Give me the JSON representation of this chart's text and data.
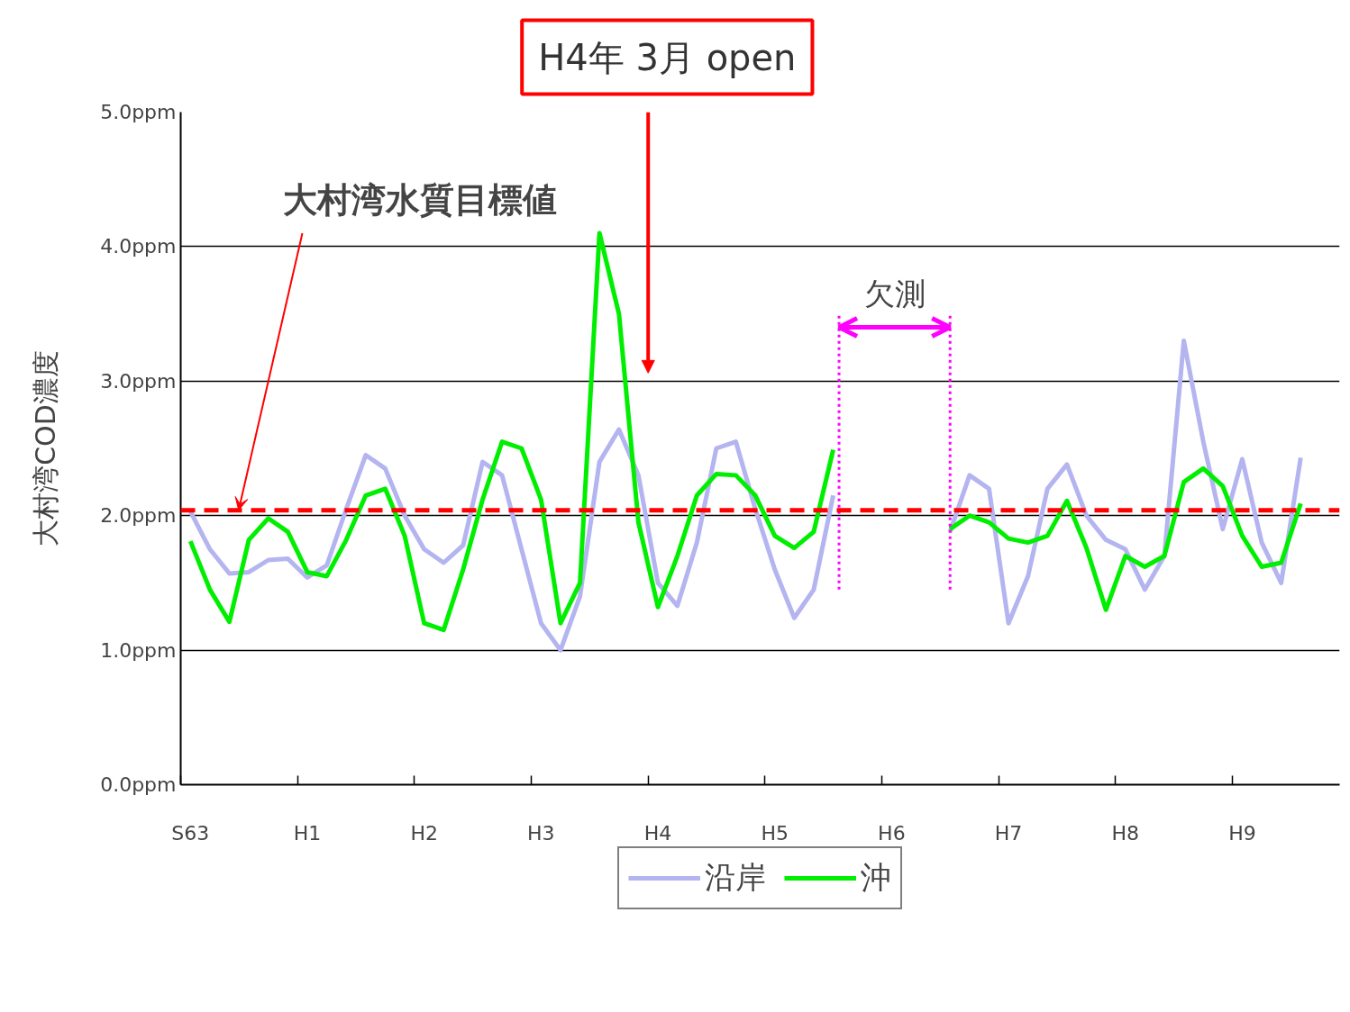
{
  "chart_data": {
    "type": "line",
    "ylabel": "大村湾COD濃度",
    "categories": [
      "S63",
      null,
      null,
      null,
      null,
      null,
      "H1",
      null,
      null,
      null,
      null,
      null,
      "H2",
      null,
      null,
      null,
      null,
      null,
      "H3",
      null,
      null,
      null,
      null,
      null,
      "H4",
      null,
      null,
      null,
      null,
      null,
      "H5",
      null,
      null,
      null,
      null,
      null,
      "H6",
      null,
      null,
      null,
      null,
      null,
      "H7",
      null,
      null,
      null,
      null,
      null,
      "H8",
      null,
      null,
      null,
      null,
      null,
      "H9",
      null,
      null,
      null
    ],
    "ylim": [
      0,
      5
    ],
    "yticks": [
      {
        "value": 0,
        "label": "0.0ppm"
      },
      {
        "value": 1,
        "label": "1.0ppm"
      },
      {
        "value": 2,
        "label": "2.0ppm"
      },
      {
        "value": 3,
        "label": "3.0ppm"
      },
      {
        "value": 4,
        "label": "4.0ppm"
      },
      {
        "value": 5,
        "label": "5.0ppm"
      }
    ],
    "grid": "y",
    "legend": "bottom",
    "line_style": "solid",
    "series": [
      {
        "name": "沿岸",
        "color": "#b4b4f0",
        "values": [
          2.03,
          1.75,
          1.57,
          1.58,
          1.67,
          1.68,
          1.54,
          1.63,
          2.05,
          2.45,
          2.35,
          2.0,
          1.75,
          1.65,
          1.78,
          2.4,
          2.3,
          1.75,
          1.2,
          1.0,
          1.4,
          2.4,
          2.64,
          2.3,
          1.5,
          1.33,
          1.8,
          2.5,
          2.55,
          2.05,
          1.6,
          1.24,
          1.45,
          2.15,
          null,
          null,
          null,
          null,
          null,
          1.88,
          2.3,
          2.2,
          1.2,
          1.55,
          2.2,
          2.38,
          2.0,
          1.82,
          1.75,
          1.45,
          1.7,
          3.3,
          2.55,
          1.9,
          2.42,
          1.8,
          1.5,
          2.43
        ]
      },
      {
        "name": "沖",
        "color": "#00ee00",
        "values": [
          1.81,
          1.45,
          1.21,
          1.82,
          1.98,
          1.88,
          1.58,
          1.55,
          1.82,
          2.15,
          2.2,
          1.85,
          1.2,
          1.15,
          1.6,
          2.12,
          2.55,
          2.5,
          2.12,
          1.2,
          1.5,
          4.1,
          3.5,
          1.95,
          1.32,
          1.7,
          2.15,
          2.31,
          2.3,
          2.15,
          1.85,
          1.76,
          1.88,
          2.49,
          null,
          null,
          null,
          null,
          null,
          1.9,
          2.0,
          1.95,
          1.83,
          1.8,
          1.85,
          2.11,
          1.76,
          1.3,
          1.7,
          1.62,
          1.7,
          2.25,
          2.35,
          2.22,
          1.85,
          1.62,
          1.65,
          2.09
        ]
      }
    ],
    "ref_lines": [
      {
        "axis": "y",
        "value": 2.04,
        "label": "大村湾水質目標値",
        "color": "#ff0000",
        "line_style": "dashed"
      }
    ],
    "annotations": [
      "H4年 3月 open",
      "欠測"
    ]
  }
}
